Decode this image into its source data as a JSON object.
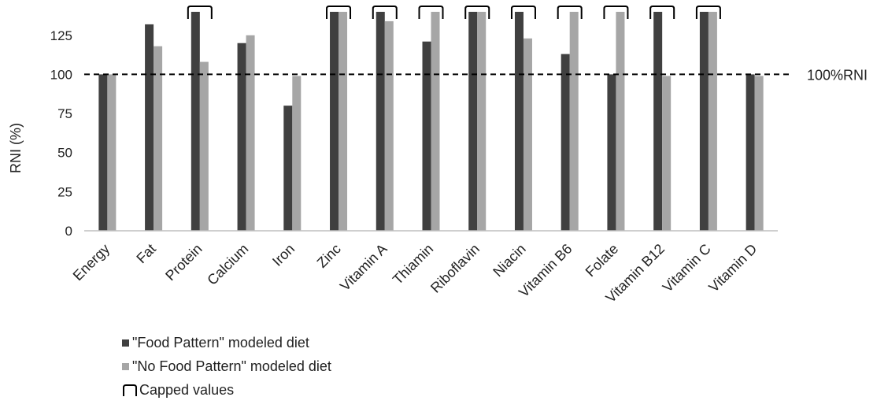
{
  "chart_data": {
    "type": "bar",
    "ylabel": "RNI (%)",
    "ylim": [
      0,
      140
    ],
    "yticks": [
      0,
      25,
      50,
      75,
      100,
      125
    ],
    "categories": [
      "Energy",
      "Fat",
      "Protein",
      "Calcium",
      "Iron",
      "Zinc",
      "Vitamin A",
      "Thiamin",
      "Riboflavin",
      "Niacin",
      "Vitamin B6",
      "Folate",
      "Vitamin B12",
      "Vitamin C",
      "Vitamin D"
    ],
    "series": [
      {
        "name": "\"Food Pattern\" modeled diet",
        "color": "#404040",
        "values": [
          100,
          132,
          140,
          120,
          80,
          140,
          140,
          121,
          140,
          140,
          113,
          100,
          140,
          140,
          100
        ]
      },
      {
        "name": "\"No Food Pattern\" modeled diet",
        "color": "#a6a6a6",
        "values": [
          100,
          118,
          108,
          125,
          99,
          140,
          134,
          140,
          140,
          123,
          140,
          140,
          99,
          140,
          99
        ]
      }
    ],
    "capped": [
      2,
      5,
      6,
      7,
      8,
      9,
      10,
      11,
      12,
      13
    ],
    "reference_line": {
      "value": 100,
      "label": "100%RNI"
    },
    "capped_label": "Capped values",
    "grid": false,
    "legend_position": "bottom-left"
  }
}
